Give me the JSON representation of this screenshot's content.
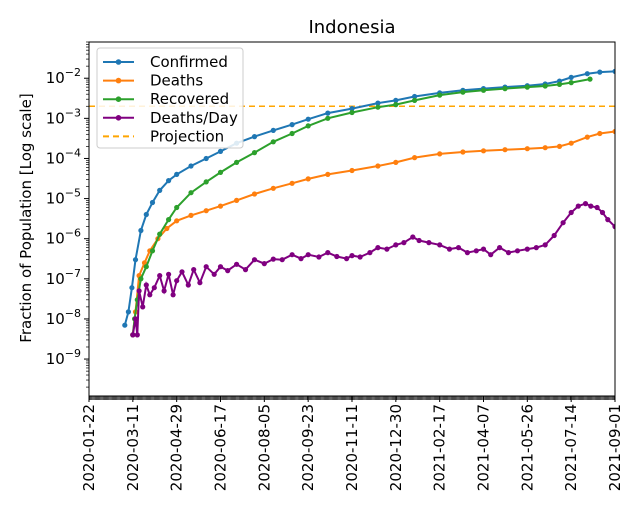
{
  "chart_data": {
    "type": "line",
    "title": "Indonesia",
    "xlabel": "",
    "ylabel": "Fraction of Population [Log scale]",
    "yscale": "log",
    "xlim": [
      "2020-01-22",
      "2021-09-01"
    ],
    "ylim": [
      1.2e-10,
      0.08
    ],
    "x_ticks": [
      "2020-01-22",
      "2020-03-11",
      "2020-04-29",
      "2020-06-17",
      "2020-08-05",
      "2020-09-23",
      "2020-11-11",
      "2020-12-30",
      "2021-02-17",
      "2021-04-07",
      "2021-05-26",
      "2021-07-14",
      "2021-09-01"
    ],
    "y_ticks": [
      {
        "value": 1e-09,
        "label": "10",
        "exp": "−9"
      },
      {
        "value": 1e-08,
        "label": "10",
        "exp": "−8"
      },
      {
        "value": 1e-07,
        "label": "10",
        "exp": "−7"
      },
      {
        "value": 1e-06,
        "label": "10",
        "exp": "−6"
      },
      {
        "value": 1e-05,
        "label": "10",
        "exp": "−5"
      },
      {
        "value": 0.0001,
        "label": "10",
        "exp": "−4"
      },
      {
        "value": 0.001,
        "label": "10",
        "exp": "−3"
      },
      {
        "value": 0.01,
        "label": "10",
        "exp": "−2"
      }
    ],
    "grid": false,
    "legend_position": "top-left",
    "series": [
      {
        "name": "Confirmed",
        "color": "#1f77b4",
        "marker": "dot",
        "points": [
          [
            "2020-03-02",
            7e-09
          ],
          [
            "2020-03-06",
            1.5e-08
          ],
          [
            "2020-03-10",
            6e-08
          ],
          [
            "2020-03-14",
            3e-07
          ],
          [
            "2020-03-20",
            1.6e-06
          ],
          [
            "2020-03-26",
            4e-06
          ],
          [
            "2020-04-02",
            8e-06
          ],
          [
            "2020-04-10",
            1.6e-05
          ],
          [
            "2020-04-20",
            2.8e-05
          ],
          [
            "2020-04-29",
            4e-05
          ],
          [
            "2020-05-15",
            6.5e-05
          ],
          [
            "2020-06-01",
            0.0001
          ],
          [
            "2020-06-17",
            0.00015
          ],
          [
            "2020-07-05",
            0.00024
          ],
          [
            "2020-07-25",
            0.00035
          ],
          [
            "2020-08-15",
            0.0005
          ],
          [
            "2020-09-05",
            0.0007
          ],
          [
            "2020-09-23",
            0.00095
          ],
          [
            "2020-10-15",
            0.00135
          ],
          [
            "2020-11-11",
            0.00175
          ],
          [
            "2020-12-10",
            0.0024
          ],
          [
            "2020-12-30",
            0.0028
          ],
          [
            "2021-01-20",
            0.0035
          ],
          [
            "2021-02-17",
            0.0043
          ],
          [
            "2021-03-15",
            0.005
          ],
          [
            "2021-04-07",
            0.0055
          ],
          [
            "2021-05-01",
            0.006
          ],
          [
            "2021-05-26",
            0.0065
          ],
          [
            "2021-06-15",
            0.0072
          ],
          [
            "2021-07-01",
            0.0085
          ],
          [
            "2021-07-14",
            0.0105
          ],
          [
            "2021-08-01",
            0.013
          ],
          [
            "2021-08-15",
            0.0142
          ],
          [
            "2021-09-01",
            0.0148
          ]
        ]
      },
      {
        "name": "Deaths",
        "color": "#ff7f0e",
        "marker": "dot",
        "points": [
          [
            "2020-03-11",
            4e-09
          ],
          [
            "2020-03-14",
            1.5e-08
          ],
          [
            "2020-03-18",
            1.2e-07
          ],
          [
            "2020-03-24",
            2.5e-07
          ],
          [
            "2020-03-30",
            5e-07
          ],
          [
            "2020-04-08",
            1e-06
          ],
          [
            "2020-04-18",
            1.8e-06
          ],
          [
            "2020-04-29",
            2.8e-06
          ],
          [
            "2020-05-15",
            3.8e-06
          ],
          [
            "2020-06-01",
            5e-06
          ],
          [
            "2020-06-17",
            6.5e-06
          ],
          [
            "2020-07-05",
            9e-06
          ],
          [
            "2020-07-25",
            1.3e-05
          ],
          [
            "2020-08-15",
            1.8e-05
          ],
          [
            "2020-09-05",
            2.4e-05
          ],
          [
            "2020-09-23",
            3.1e-05
          ],
          [
            "2020-10-15",
            4e-05
          ],
          [
            "2020-11-11",
            5e-05
          ],
          [
            "2020-12-10",
            6.5e-05
          ],
          [
            "2020-12-30",
            8e-05
          ],
          [
            "2021-01-20",
            0.000105
          ],
          [
            "2021-02-17",
            0.00013
          ],
          [
            "2021-03-15",
            0.000145
          ],
          [
            "2021-04-07",
            0.000155
          ],
          [
            "2021-05-01",
            0.000165
          ],
          [
            "2021-05-26",
            0.000175
          ],
          [
            "2021-06-15",
            0.000185
          ],
          [
            "2021-07-01",
            0.0002
          ],
          [
            "2021-07-14",
            0.00024
          ],
          [
            "2021-08-01",
            0.00034
          ],
          [
            "2021-08-15",
            0.00042
          ],
          [
            "2021-09-01",
            0.00047
          ]
        ]
      },
      {
        "name": "Recovered",
        "color": "#2ca02c",
        "marker": "dot",
        "points": [
          [
            "2020-03-11",
            4e-09
          ],
          [
            "2020-03-13",
            1e-08
          ],
          [
            "2020-03-16",
            3e-08
          ],
          [
            "2020-03-20",
            1e-07
          ],
          [
            "2020-03-26",
            2e-07
          ],
          [
            "2020-04-02",
            5e-07
          ],
          [
            "2020-04-10",
            1.3e-06
          ],
          [
            "2020-04-20",
            3e-06
          ],
          [
            "2020-04-29",
            6e-06
          ],
          [
            "2020-05-15",
            1.4e-05
          ],
          [
            "2020-06-01",
            2.6e-05
          ],
          [
            "2020-06-17",
            4.5e-05
          ],
          [
            "2020-07-05",
            8e-05
          ],
          [
            "2020-07-25",
            0.00014
          ],
          [
            "2020-08-15",
            0.00026
          ],
          [
            "2020-09-05",
            0.00042
          ],
          [
            "2020-09-23",
            0.00065
          ],
          [
            "2020-10-15",
            0.001
          ],
          [
            "2020-11-11",
            0.0014
          ],
          [
            "2020-12-10",
            0.0019
          ],
          [
            "2020-12-30",
            0.0022
          ],
          [
            "2021-01-20",
            0.0028
          ],
          [
            "2021-02-17",
            0.0038
          ],
          [
            "2021-03-15",
            0.0045
          ],
          [
            "2021-04-07",
            0.005
          ],
          [
            "2021-05-01",
            0.0055
          ],
          [
            "2021-05-26",
            0.006
          ],
          [
            "2021-06-15",
            0.0064
          ],
          [
            "2021-07-01",
            0.007
          ],
          [
            "2021-07-14",
            0.0078
          ],
          [
            "2021-08-04",
            0.0095
          ]
        ]
      },
      {
        "name": "Deaths/Day",
        "color": "#800080",
        "marker": "dot",
        "points": [
          [
            "2020-03-11",
            4e-09
          ],
          [
            "2020-03-14",
            1e-08
          ],
          [
            "2020-03-16",
            4e-09
          ],
          [
            "2020-03-18",
            5e-08
          ],
          [
            "2020-03-22",
            2e-08
          ],
          [
            "2020-03-26",
            7e-08
          ],
          [
            "2020-03-30",
            4e-08
          ],
          [
            "2020-04-04",
            6e-08
          ],
          [
            "2020-04-10",
            1.2e-07
          ],
          [
            "2020-04-15",
            5e-08
          ],
          [
            "2020-04-20",
            1.3e-07
          ],
          [
            "2020-04-25",
            4e-08
          ],
          [
            "2020-04-29",
            9e-08
          ],
          [
            "2020-05-05",
            1.5e-07
          ],
          [
            "2020-05-12",
            7e-08
          ],
          [
            "2020-05-18",
            1.7e-07
          ],
          [
            "2020-05-25",
            8e-08
          ],
          [
            "2020-06-01",
            2e-07
          ],
          [
            "2020-06-10",
            1.3e-07
          ],
          [
            "2020-06-17",
            2e-07
          ],
          [
            "2020-06-25",
            1.6e-07
          ],
          [
            "2020-07-05",
            2.3e-07
          ],
          [
            "2020-07-15",
            1.7e-07
          ],
          [
            "2020-07-25",
            3e-07
          ],
          [
            "2020-08-05",
            2.4e-07
          ],
          [
            "2020-08-15",
            3.1e-07
          ],
          [
            "2020-08-25",
            3e-07
          ],
          [
            "2020-09-05",
            4e-07
          ],
          [
            "2020-09-15",
            3.2e-07
          ],
          [
            "2020-09-23",
            4e-07
          ],
          [
            "2020-10-05",
            3.5e-07
          ],
          [
            "2020-10-15",
            4.5e-07
          ],
          [
            "2020-10-25",
            3.6e-07
          ],
          [
            "2020-11-05",
            3.2e-07
          ],
          [
            "2020-11-11",
            3.8e-07
          ],
          [
            "2020-11-20",
            3.5e-07
          ],
          [
            "2020-12-01",
            4.5e-07
          ],
          [
            "2020-12-10",
            6e-07
          ],
          [
            "2020-12-20",
            5.5e-07
          ],
          [
            "2020-12-30",
            7e-07
          ],
          [
            "2021-01-08",
            8e-07
          ],
          [
            "2021-01-18",
            1.1e-06
          ],
          [
            "2021-01-25",
            9e-07
          ],
          [
            "2021-02-05",
            8e-07
          ],
          [
            "2021-02-17",
            7e-07
          ],
          [
            "2021-02-28",
            5.5e-07
          ],
          [
            "2021-03-10",
            6e-07
          ],
          [
            "2021-03-20",
            4.5e-07
          ],
          [
            "2021-03-30",
            5e-07
          ],
          [
            "2021-04-07",
            5.5e-07
          ],
          [
            "2021-04-15",
            4e-07
          ],
          [
            "2021-04-25",
            6e-07
          ],
          [
            "2021-05-05",
            4.5e-07
          ],
          [
            "2021-05-15",
            5e-07
          ],
          [
            "2021-05-26",
            5.5e-07
          ],
          [
            "2021-06-05",
            6e-07
          ],
          [
            "2021-06-15",
            7e-07
          ],
          [
            "2021-06-25",
            1.2e-06
          ],
          [
            "2021-07-05",
            2.5e-06
          ],
          [
            "2021-07-14",
            4.5e-06
          ],
          [
            "2021-07-22",
            6.5e-06
          ],
          [
            "2021-07-30",
            7.5e-06
          ],
          [
            "2021-08-05",
            6.5e-06
          ],
          [
            "2021-08-12",
            6e-06
          ],
          [
            "2021-08-18",
            4.5e-06
          ],
          [
            "2021-08-24",
            3e-06
          ],
          [
            "2021-09-01",
            2e-06
          ]
        ]
      }
    ],
    "reference_lines": [
      {
        "name": "Projection",
        "orientation": "horizontal",
        "value": 0.002,
        "color": "#ffa500",
        "style": "dashed"
      }
    ]
  }
}
